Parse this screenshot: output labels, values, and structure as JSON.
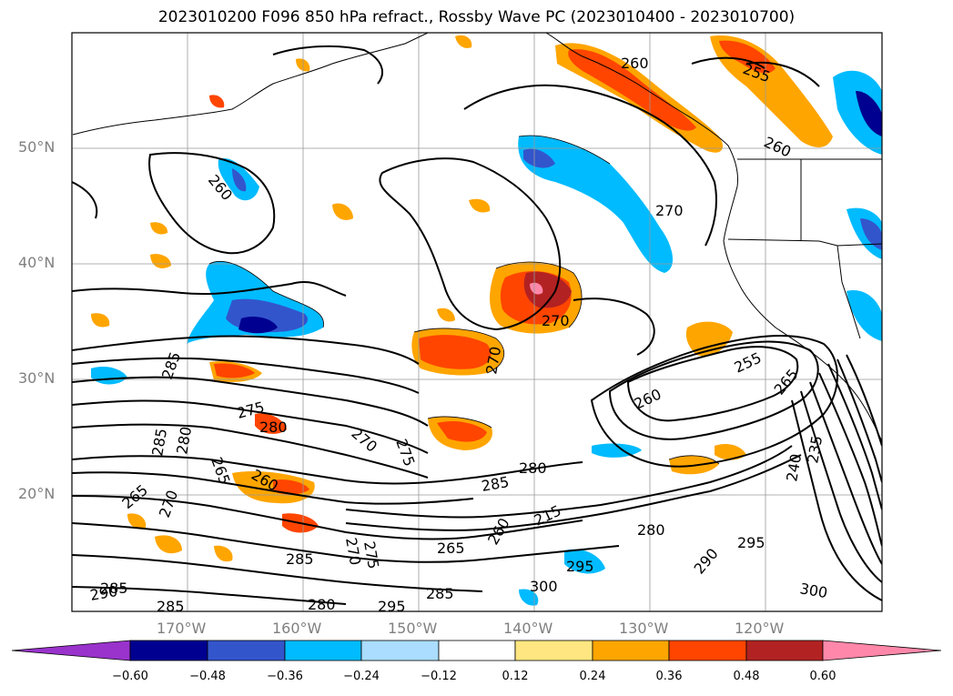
{
  "title": "2023010200 F096 850 hPa refract., Rossby Wave PC (2023010400 - 2023010700)",
  "lat_labels": [
    "50°N",
    "40°N",
    "30°N",
    "20°N"
  ],
  "lon_labels": [
    "170°W",
    "160°W",
    "150°W",
    "140°W",
    "130°W",
    "120°W"
  ],
  "colorbar": {
    "ticks": [
      "−0.60",
      "−0.48",
      "−0.36",
      "−0.24",
      "−0.12",
      "0.12",
      "0.24",
      "0.36",
      "0.48",
      "0.60"
    ],
    "colors": [
      "#9933cc",
      "#000090",
      "#3355cc",
      "#00bbff",
      "#aaddff",
      "#ffffff",
      "#ffe680",
      "#ffa500",
      "#ff4500",
      "#b22222",
      "#ff88aa"
    ]
  },
  "contour_labels": [
    "260",
    "255",
    "260",
    "260",
    "270",
    "270",
    "270",
    "285",
    "275",
    "280",
    "285",
    "280",
    "270",
    "275",
    "265",
    "260",
    "265",
    "270",
    "285",
    "280",
    "260",
    "265",
    "215",
    "255",
    "260",
    "265",
    "240",
    "235",
    "280",
    "290",
    "295",
    "300",
    "295",
    "300",
    "285",
    "280",
    "285",
    "285",
    "290",
    "285",
    "270",
    "275",
    "295"
  ]
}
